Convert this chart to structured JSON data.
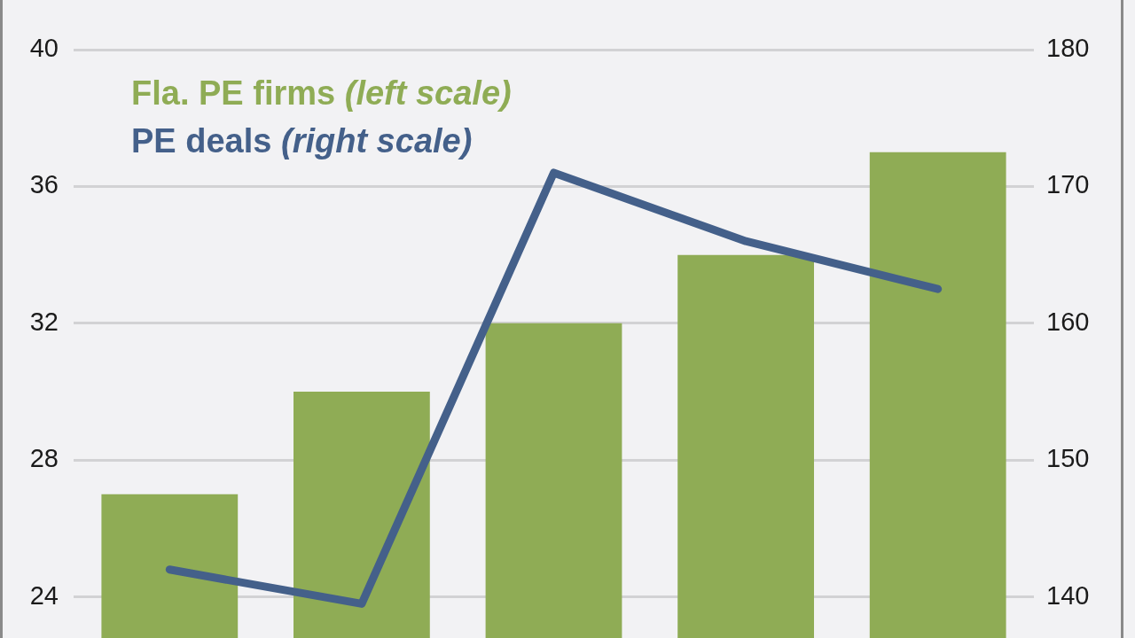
{
  "chart_data": {
    "type": "bar",
    "categories": [
      null,
      null,
      null,
      null,
      null
    ],
    "series": [
      {
        "name": "Fla. PE firms (left scale)",
        "color": "#8fac55",
        "values": [
          27,
          30,
          32,
          34,
          37
        ]
      },
      {
        "name": "PE deals (right scale)",
        "type": "line",
        "axis": "y2",
        "color": "#44608a",
        "values": [
          142,
          139.5,
          171,
          166,
          162.5
        ]
      }
    ],
    "ylim": [
      22.8,
      40
    ],
    "yticks": [
      24,
      28,
      32,
      36,
      40
    ],
    "y2lim": [
      137,
      180
    ],
    "y2ticks": [
      140,
      150,
      160,
      170,
      180
    ],
    "grid": "y",
    "legend": "top left"
  }
}
